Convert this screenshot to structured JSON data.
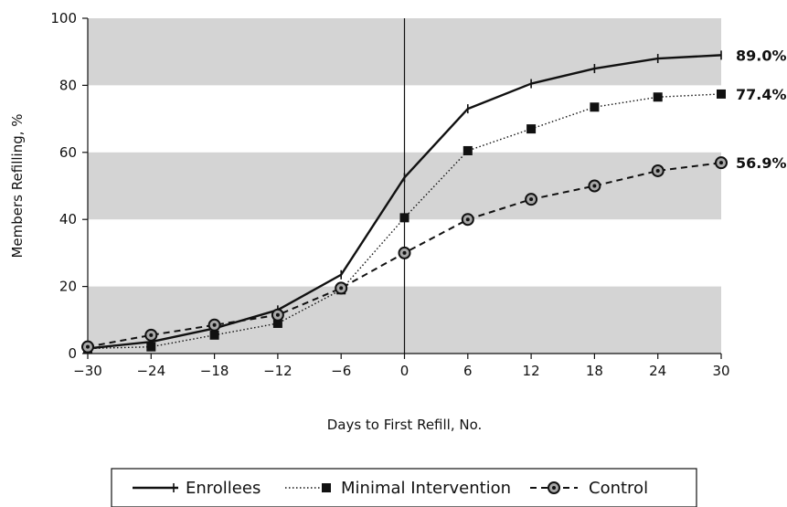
{
  "chart_data": {
    "type": "line",
    "x": [
      -30,
      -24,
      -18,
      -12,
      -6,
      0,
      6,
      12,
      18,
      24,
      30
    ],
    "xtick_labels": [
      "−30",
      "−24",
      "−18",
      "−12",
      "−6",
      "0",
      "6",
      "12",
      "18",
      "24",
      "30"
    ],
    "yticks": [
      0,
      20,
      40,
      60,
      80,
      100
    ],
    "xlabel": "Days to First Refill, No.",
    "ylabel": "Members Refilling, %",
    "xlim": [
      -30,
      30
    ],
    "ylim": [
      0,
      100
    ],
    "shaded_bands": [
      [
        0,
        20
      ],
      [
        40,
        60
      ],
      [
        80,
        100
      ]
    ],
    "vertical_reference_x": 0,
    "legend_position": "bottom",
    "series": [
      {
        "name": "Enrollees",
        "style": "solid",
        "marker": "tick",
        "values": [
          1.5,
          3.5,
          7.5,
          13,
          23.5,
          52.5,
          73,
          80.5,
          85,
          88,
          89
        ]
      },
      {
        "name": "Minimal Intervention",
        "style": "dotted",
        "marker": "square",
        "values": [
          1.5,
          2,
          5.5,
          9,
          19,
          40.5,
          60.5,
          67,
          73.5,
          76.5,
          77.4
        ]
      },
      {
        "name": "Control",
        "style": "dashed",
        "marker": "circle",
        "values": [
          2,
          5.5,
          8.5,
          11.5,
          19.5,
          30,
          40,
          46,
          50,
          54.5,
          56.9
        ]
      }
    ],
    "end_labels": [
      "89.0%",
      "77.4%",
      "56.9%"
    ]
  },
  "colors": {
    "band": "#d4d4d4",
    "line": "#111111",
    "control_marker_fill": "#a8a8a8"
  }
}
